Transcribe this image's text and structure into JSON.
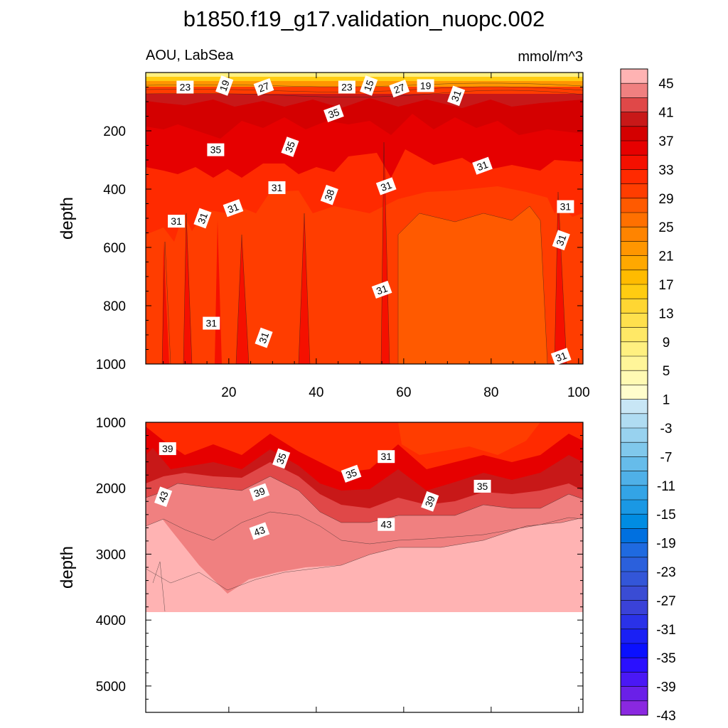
{
  "title": "b1850.f19_g17.validation_nuopc.002",
  "subtitle_left": "AOU, LabSea",
  "subtitle_right": "mmol/m^3",
  "chart_data": {
    "type": "contour",
    "variable": "AOU",
    "region": "LabSea",
    "units": "mmol/m^3",
    "colorbar": {
      "levels": [
        -45,
        -43,
        -41,
        -39,
        -37,
        -35,
        -33,
        -31,
        -29,
        -27,
        -25,
        -23,
        -21,
        -19,
        -17,
        -15,
        -13,
        -11,
        -9,
        -7,
        -5,
        -3,
        -1,
        1,
        3,
        5,
        7,
        9,
        11,
        13,
        15,
        17,
        19,
        21,
        23,
        25,
        27,
        29,
        31,
        33,
        35,
        37,
        39,
        41,
        43,
        45
      ],
      "tick_labels": [
        "45",
        "41",
        "37",
        "33",
        "29",
        "25",
        "21",
        "17",
        "13",
        "9",
        "5",
        "1",
        "-3",
        "-7",
        "-11",
        "-15",
        "-19",
        "-23",
        "-27",
        "-31",
        "-35",
        "-39",
        "-43"
      ],
      "colors_top_to_bottom": [
        "#ffb3b3",
        "#f08080",
        "#e04848",
        "#c81818",
        "#d40000",
        "#e60000",
        "#f51000",
        "#ff2a00",
        "#ff3d00",
        "#ff5a00",
        "#ff7000",
        "#ff8400",
        "#ff9600",
        "#ffa800",
        "#ffbb00",
        "#ffcc11",
        "#ffd633",
        "#ffe04d",
        "#ffe866",
        "#fff080",
        "#fff599",
        "#fffab3",
        "#fffdcc",
        "#c8e6f5",
        "#b0dcf2",
        "#98d2ef",
        "#80c8ec",
        "#66bcea",
        "#4fb0e8",
        "#33a4e6",
        "#1a98e4",
        "#008ce2",
        "#0070e0",
        "#1f6ae0",
        "#2b60dc",
        "#3356d8",
        "#3a4cd4",
        "#3a42d8",
        "#2a32e8",
        "#1a20f5",
        "#0a10ff",
        "#2a10ff",
        "#4a18f5",
        "#6a20e8",
        "#8a28e0"
      ]
    },
    "panels": [
      {
        "name": "upper",
        "ylabel": "depth",
        "x_ticks": [
          20,
          40,
          60,
          80,
          100
        ],
        "xlim": [
          1,
          101
        ],
        "y_ticks": [
          200,
          400,
          600,
          800,
          1000
        ],
        "ylim": [
          0,
          1000
        ],
        "y_reversed": true,
        "contour_labels": [
          {
            "text": "23",
            "x": 10,
            "depth": 50
          },
          {
            "text": "19",
            "x": 19,
            "depth": 45
          },
          {
            "text": "27",
            "x": 28,
            "depth": 50
          },
          {
            "text": "23",
            "x": 47,
            "depth": 50
          },
          {
            "text": "15",
            "x": 52,
            "depth": 45
          },
          {
            "text": "27",
            "x": 59,
            "depth": 55
          },
          {
            "text": "19",
            "x": 65,
            "depth": 45
          },
          {
            "text": "31",
            "x": 72,
            "depth": 80
          },
          {
            "text": "35",
            "x": 44,
            "depth": 140
          },
          {
            "text": "35",
            "x": 17,
            "depth": 265
          },
          {
            "text": "35",
            "x": 34,
            "depth": 255
          },
          {
            "text": "31",
            "x": 78,
            "depth": 320
          },
          {
            "text": "31",
            "x": 31,
            "depth": 395
          },
          {
            "text": "38",
            "x": 43,
            "depth": 420
          },
          {
            "text": "31",
            "x": 56,
            "depth": 390
          },
          {
            "text": "31",
            "x": 8,
            "depth": 510
          },
          {
            "text": "31",
            "x": 14,
            "depth": 500
          },
          {
            "text": "31",
            "x": 21,
            "depth": 465
          },
          {
            "text": "31",
            "x": 97,
            "depth": 460
          },
          {
            "text": "31",
            "x": 96,
            "depth": 575
          },
          {
            "text": "31",
            "x": 55,
            "depth": 745
          },
          {
            "text": "31",
            "x": 16,
            "depth": 860
          },
          {
            "text": "31",
            "x": 28,
            "depth": 910
          },
          {
            "text": "31",
            "x": 96,
            "depth": 975
          }
        ]
      },
      {
        "name": "lower",
        "ylabel": "depth",
        "y_ticks": [
          1000,
          2000,
          3000,
          4000,
          5000
        ],
        "ylim": [
          1000,
          5400
        ],
        "y_reversed": true,
        "data_bottom_depth": 3850,
        "contour_labels": [
          {
            "text": "39",
            "x": 6,
            "depth": 1400
          },
          {
            "text": "35",
            "x": 32,
            "depth": 1550
          },
          {
            "text": "35",
            "x": 48,
            "depth": 1780
          },
          {
            "text": "31",
            "x": 56,
            "depth": 1520
          },
          {
            "text": "43",
            "x": 5,
            "depth": 2130
          },
          {
            "text": "39",
            "x": 27,
            "depth": 2060
          },
          {
            "text": "35",
            "x": 78,
            "depth": 1970
          },
          {
            "text": "39",
            "x": 66,
            "depth": 2200
          },
          {
            "text": "43",
            "x": 27,
            "depth": 2650
          },
          {
            "text": "43",
            "x": 56,
            "depth": 2550
          }
        ]
      }
    ]
  }
}
